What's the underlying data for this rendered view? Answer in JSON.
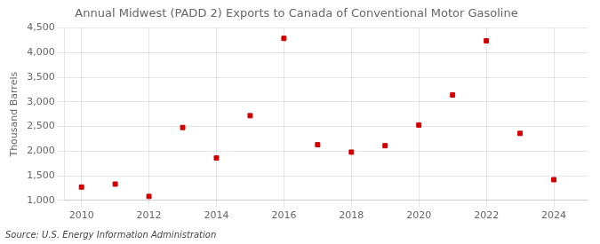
{
  "chart_data": {
    "type": "scatter",
    "title": "Annual Midwest (PADD 2) Exports to Canada of Conventional Motor Gasoline",
    "ylabel": "Thousand Barrels",
    "annotation": "Source: U.S. Energy Information Administration",
    "x": [
      2010,
      2011,
      2012,
      2013,
      2014,
      2015,
      2016,
      2017,
      2018,
      2019,
      2020,
      2021,
      2022,
      2023,
      2024
    ],
    "values": [
      1270,
      1330,
      1080,
      2480,
      1860,
      2720,
      4290,
      2130,
      1980,
      2110,
      2530,
      3140,
      4240,
      2360,
      1420
    ],
    "color": "#cc0000",
    "marker": "square",
    "xlim": [
      2009.5,
      2025
    ],
    "xticks": [
      2010,
      2012,
      2014,
      2016,
      2018,
      2020,
      2022,
      2024
    ],
    "ylim": [
      1000,
      4500
    ],
    "yticks": [
      {
        "value": 1000,
        "label": "1,000"
      },
      {
        "value": 1500,
        "label": "1,500"
      },
      {
        "value": 2000,
        "label": "2,000"
      },
      {
        "value": 2500,
        "label": "2,500"
      },
      {
        "value": 3000,
        "label": "3,000"
      },
      {
        "value": 3500,
        "label": "3,500"
      },
      {
        "value": 4000,
        "label": "4,000"
      },
      {
        "value": 4500,
        "label": "4,500"
      }
    ],
    "grid": true
  }
}
